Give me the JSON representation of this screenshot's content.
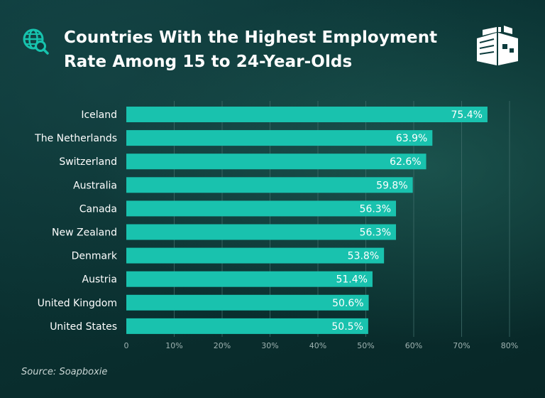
{
  "header": {
    "title": "Countries With the Highest Employment Rate Among 15 to 24-Year-Olds",
    "globe_icon": "globe-search-icon",
    "logo_icon": "soapboxie-logo-icon"
  },
  "footer": {
    "source": "Source: Soapboxie"
  },
  "colors": {
    "bar": "#19c2ae",
    "grid": "#3f6b69",
    "tick": "#9fb3b1",
    "label": "#ffffff"
  },
  "chart_data": {
    "type": "bar",
    "orientation": "horizontal",
    "categories": [
      "Iceland",
      "The Netherlands",
      "Switzerland",
      "Australia",
      "Canada",
      "New Zealand",
      "Denmark",
      "Austria",
      "United Kingdom",
      "United States"
    ],
    "values": [
      75.4,
      63.9,
      62.6,
      59.8,
      56.3,
      56.3,
      53.8,
      51.4,
      50.6,
      50.5
    ],
    "value_labels": [
      "75.4%",
      "63.9%",
      "62.6%",
      "59.8%",
      "56.3%",
      "56.3%",
      "53.8%",
      "51.4%",
      "50.6%",
      "50.5%"
    ],
    "title": "Countries With the Highest Employment Rate Among 15 to 24-Year-Olds",
    "xlim": [
      0,
      80
    ],
    "xticks": [
      0,
      10,
      20,
      30,
      40,
      50,
      60,
      70,
      80
    ],
    "xtick_labels": [
      "0",
      "10%",
      "20%",
      "30%",
      "40%",
      "50%",
      "60%",
      "70%",
      "80%"
    ],
    "grid": true,
    "legend": "none"
  }
}
